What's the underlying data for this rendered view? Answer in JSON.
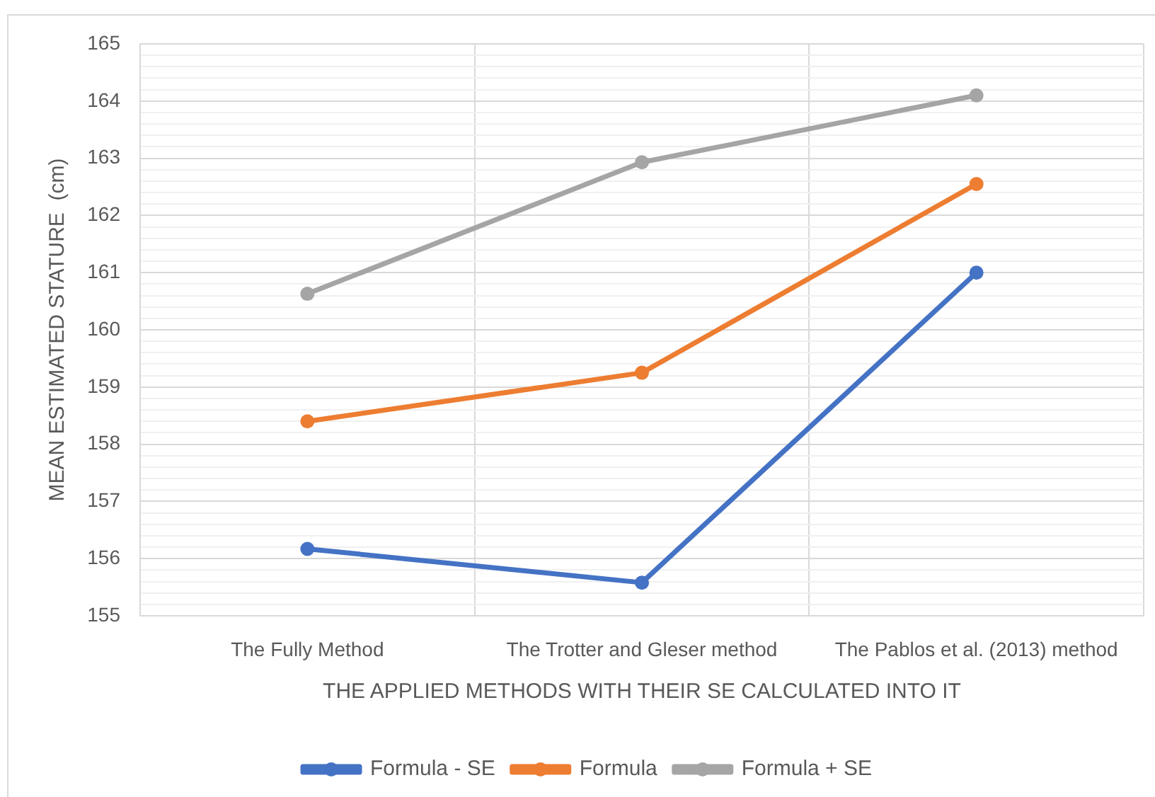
{
  "chart_data": {
    "type": "line",
    "xlabel": "THE APPLIED METHODS WITH THEIR SE CALCULATED INTO IT",
    "ylabel": "MEAN ESTIMATED STATURE  (cm)",
    "categories": [
      "The Fully Method",
      "The Trotter and Gleser method",
      "The Pablos et al. (2013) method"
    ],
    "series": [
      {
        "name": "Formula - SE",
        "color": "#4472c4",
        "values": [
          156.17,
          155.58,
          161.0
        ]
      },
      {
        "name": "Formula",
        "color": "#ed7d31",
        "values": [
          158.4,
          159.25,
          162.55
        ]
      },
      {
        "name": "Formula + SE",
        "color": "#a5a5a5",
        "values": [
          160.63,
          162.93,
          164.1
        ]
      }
    ],
    "ylim": [
      155,
      165
    ],
    "yticks": [
      155,
      {
        "value": 155.2,
        "label": null
      },
      {
        "value": 155.4,
        "label": null
      },
      {
        "value": 155.6,
        "label": null
      },
      {
        "value": 155.8,
        "label": null
      },
      156,
      {
        "value": 156.2,
        "label": null
      },
      {
        "value": 156.4,
        "label": null
      },
      {
        "value": 156.6,
        "label": null
      },
      {
        "value": 156.8,
        "label": null
      },
      157,
      {
        "value": 157.2,
        "label": null
      },
      {
        "value": 157.4,
        "label": null
      },
      {
        "value": 157.6,
        "label": null
      },
      {
        "value": 157.8,
        "label": null
      },
      158,
      {
        "value": 158.2,
        "label": null
      },
      {
        "value": 158.4,
        "label": null
      },
      {
        "value": 158.6,
        "label": null
      },
      {
        "value": 158.8,
        "label": null
      },
      159,
      {
        "value": 159.2,
        "label": null
      },
      {
        "value": 159.4,
        "label": null
      },
      {
        "value": 159.6,
        "label": null
      },
      {
        "value": 159.8,
        "label": null
      },
      160,
      {
        "value": 160.2,
        "label": null
      },
      {
        "value": 160.4,
        "label": null
      },
      {
        "value": 160.6,
        "label": null
      },
      {
        "value": 160.8,
        "label": null
      },
      161,
      {
        "value": 161.2,
        "label": null
      },
      {
        "value": 161.4,
        "label": null
      },
      {
        "value": 161.6,
        "label": null
      },
      {
        "value": 161.8,
        "label": null
      },
      162,
      {
        "value": 162.2,
        "label": null
      },
      {
        "value": 162.4,
        "label": null
      },
      {
        "value": 162.6,
        "label": null
      },
      {
        "value": 162.8,
        "label": null
      },
      163,
      {
        "value": 163.2,
        "label": null
      },
      {
        "value": 163.4,
        "label": null
      },
      {
        "value": 163.6,
        "label": null
      },
      {
        "value": 163.8,
        "label": null
      },
      164,
      {
        "value": 164.2,
        "label": null
      },
      {
        "value": 164.4,
        "label": null
      },
      {
        "value": 164.6,
        "label": null
      },
      {
        "value": 164.8,
        "label": null
      },
      165
    ],
    "grid": true,
    "legend": "bottom",
    "marker": "circle"
  }
}
